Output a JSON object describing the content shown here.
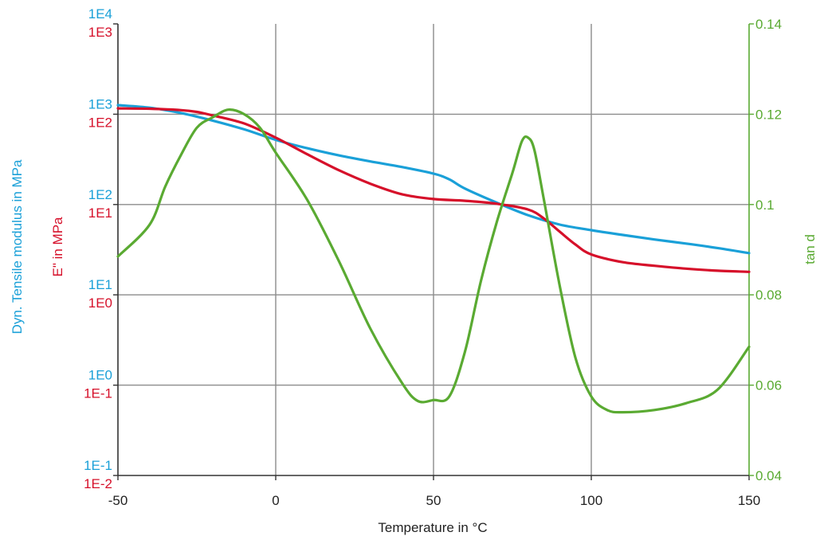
{
  "chart_data": {
    "type": "line",
    "xlabel": "Temperature in  °C",
    "xlim": [
      -50,
      150
    ],
    "x_ticks": [
      "-50",
      "0",
      "50",
      "100",
      "150"
    ],
    "y_left_modulus": {
      "label": "Dyn. Tensile modulus in  MPa",
      "scale": "log",
      "lim": [
        0.1,
        10000
      ],
      "ticks": [
        "1E-1",
        "1E0",
        "1E1",
        "1E2",
        "1E3",
        "1E4"
      ]
    },
    "y_left_loss": {
      "label": "E\" in  MPa",
      "scale": "log",
      "lim": [
        0.01,
        1000
      ],
      "ticks": [
        "1E-2",
        "1E-1",
        "1E0",
        "1E1",
        "1E2",
        "1E3"
      ]
    },
    "y_right": {
      "label": "tan d",
      "lim": [
        0.04,
        0.14
      ],
      "ticks": [
        "0.04",
        "0.06",
        "0.08",
        "0.1",
        "0.12",
        "0.14"
      ]
    },
    "grid": true,
    "series": [
      {
        "color": "#1aa0d8",
        "axis": "left_modulus",
        "points": [
          [
            -50,
            1260
          ],
          [
            -40,
            1180
          ],
          [
            -30,
            1030
          ],
          [
            -20,
            850
          ],
          [
            -10,
            680
          ],
          [
            0,
            520
          ],
          [
            10,
            420
          ],
          [
            20,
            350
          ],
          [
            30,
            300
          ],
          [
            40,
            260
          ],
          [
            50,
            220
          ],
          [
            55,
            190
          ],
          [
            60,
            150
          ],
          [
            70,
            105
          ],
          [
            80,
            76
          ],
          [
            90,
            60
          ],
          [
            100,
            52
          ],
          [
            110,
            46
          ],
          [
            120,
            41
          ],
          [
            130,
            37
          ],
          [
            140,
            33
          ],
          [
            150,
            29
          ]
        ]
      },
      {
        "color": "#d6102a",
        "axis": "left_loss",
        "points": [
          [
            -50,
            116
          ],
          [
            -40,
            115
          ],
          [
            -30,
            111
          ],
          [
            -25,
            106
          ],
          [
            -20,
            97
          ],
          [
            -10,
            79
          ],
          [
            0,
            55
          ],
          [
            10,
            36
          ],
          [
            20,
            24
          ],
          [
            30,
            17
          ],
          [
            40,
            13
          ],
          [
            50,
            11.5
          ],
          [
            60,
            11
          ],
          [
            70,
            10.2
          ],
          [
            80,
            8.8
          ],
          [
            85,
            7
          ],
          [
            90,
            5
          ],
          [
            95,
            3.6
          ],
          [
            100,
            2.8
          ],
          [
            110,
            2.3
          ],
          [
            120,
            2.1
          ],
          [
            130,
            1.95
          ],
          [
            140,
            1.85
          ],
          [
            150,
            1.8
          ]
        ]
      },
      {
        "color": "#5aaa32",
        "axis": "right",
        "points": [
          [
            -50,
            0.0885
          ],
          [
            -40,
            0.0955
          ],
          [
            -35,
            0.104
          ],
          [
            -30,
            0.111
          ],
          [
            -25,
            0.117
          ],
          [
            -20,
            0.1193
          ],
          [
            -15,
            0.121
          ],
          [
            -10,
            0.12
          ],
          [
            -5,
            0.117
          ],
          [
            0,
            0.1115
          ],
          [
            10,
            0.101
          ],
          [
            20,
            0.0875
          ],
          [
            30,
            0.0725
          ],
          [
            40,
            0.0605
          ],
          [
            45,
            0.0565
          ],
          [
            50,
            0.0567
          ],
          [
            55,
            0.0575
          ],
          [
            60,
            0.0675
          ],
          [
            65,
            0.083
          ],
          [
            70,
            0.096
          ],
          [
            75,
            0.107
          ],
          [
            78,
            0.114
          ],
          [
            80,
            0.1148
          ],
          [
            82,
            0.112
          ],
          [
            85,
            0.101
          ],
          [
            90,
            0.082
          ],
          [
            95,
            0.066
          ],
          [
            100,
            0.0575
          ],
          [
            105,
            0.0545
          ],
          [
            110,
            0.054
          ],
          [
            120,
            0.0545
          ],
          [
            130,
            0.056
          ],
          [
            140,
            0.059
          ],
          [
            150,
            0.0685
          ]
        ]
      }
    ]
  },
  "colors": {
    "modulus": "#1aa0d8",
    "loss": "#d6102a",
    "tand": "#5aaa32",
    "grid": "#8c8c8c",
    "axis": "#333333"
  }
}
